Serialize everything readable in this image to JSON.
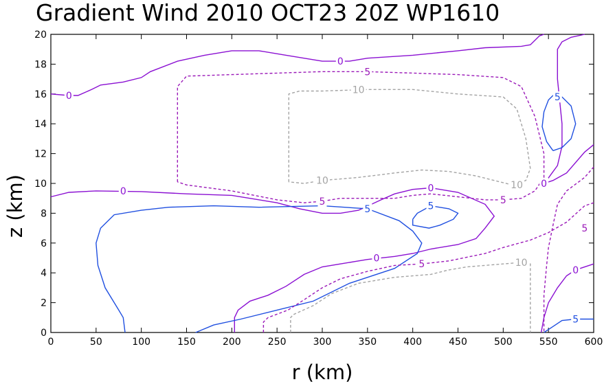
{
  "chart_data": {
    "type": "contour",
    "title": "Gradient Wind 2010 OCT23 20Z   WP1610",
    "xlabel": "r (km)",
    "ylabel": "z (km)",
    "xlim": [
      0,
      600
    ],
    "ylim": [
      0,
      20
    ],
    "x_ticks": [
      "0",
      "50",
      "100",
      "150",
      "200",
      "250",
      "300",
      "350",
      "400",
      "450",
      "500",
      "550",
      "600"
    ],
    "y_ticks": [
      "0",
      "2",
      "4",
      "6",
      "8",
      "10",
      "12",
      "14",
      "16",
      "18",
      "20"
    ],
    "grid": false,
    "colors": {
      "zero": "#8a0fd2",
      "positive": "#1f4fe0",
      "negative": "#9a18b8",
      "strong_negative": "#a3a3a3"
    },
    "contours": [
      {
        "level": "0",
        "kind": "zero",
        "dashed": false,
        "points": [
          [
            0,
            16
          ],
          [
            20,
            15.9
          ],
          [
            30,
            15.9
          ],
          [
            45,
            16.3
          ],
          [
            55,
            16.6
          ],
          [
            80,
            16.8
          ],
          [
            100,
            17.1
          ],
          [
            110,
            17.5
          ],
          [
            140,
            18.2
          ],
          [
            170,
            18.6
          ],
          [
            200,
            18.9
          ],
          [
            230,
            18.9
          ],
          [
            260,
            18.6
          ],
          [
            300,
            18.2
          ],
          [
            330,
            18.2
          ],
          [
            350,
            18.4
          ],
          [
            400,
            18.6
          ],
          [
            450,
            18.9
          ],
          [
            480,
            19.1
          ],
          [
            520,
            19.2
          ],
          [
            530,
            19.3
          ],
          [
            540,
            19.9
          ],
          [
            545,
            20
          ]
        ],
        "labels": [
          {
            "text": "0",
            "x": 20,
            "y": 15.9
          },
          {
            "text": "0",
            "x": 320,
            "y": 18.2
          }
        ]
      },
      {
        "level": "0",
        "kind": "zero",
        "dashed": false,
        "points": [
          [
            0,
            9.1
          ],
          [
            20,
            9.4
          ],
          [
            50,
            9.5
          ],
          [
            100,
            9.45
          ],
          [
            150,
            9.3
          ],
          [
            200,
            9.2
          ],
          [
            250,
            8.7
          ],
          [
            275,
            8.3
          ],
          [
            300,
            8.0
          ],
          [
            320,
            8.0
          ],
          [
            340,
            8.2
          ],
          [
            365,
            8.9
          ],
          [
            380,
            9.3
          ],
          [
            400,
            9.6
          ],
          [
            420,
            9.7
          ],
          [
            450,
            9.4
          ],
          [
            480,
            8.6
          ],
          [
            490,
            7.8
          ],
          [
            480,
            7.0
          ],
          [
            470,
            6.3
          ],
          [
            450,
            5.9
          ],
          [
            420,
            5.6
          ],
          [
            400,
            5.3
          ],
          [
            380,
            5.1
          ],
          [
            350,
            4.9
          ],
          [
            320,
            4.6
          ],
          [
            300,
            4.4
          ],
          [
            280,
            3.9
          ],
          [
            260,
            3.1
          ],
          [
            240,
            2.5
          ],
          [
            220,
            2.1
          ],
          [
            207,
            1.5
          ],
          [
            203,
            1.0
          ],
          [
            203,
            0
          ]
        ],
        "labels": [
          {
            "text": "0",
            "x": 80,
            "y": 9.5
          },
          {
            "text": "0",
            "x": 420,
            "y": 9.7
          },
          {
            "text": "0",
            "x": 360,
            "y": 5.0
          }
        ]
      },
      {
        "level": "0",
        "kind": "zero",
        "dashed": false,
        "points": [
          [
            590,
            20
          ],
          [
            575,
            19.8
          ],
          [
            565,
            19.5
          ],
          [
            560,
            19.0
          ],
          [
            560,
            17.0
          ],
          [
            565,
            14.0
          ],
          [
            565,
            12.5
          ],
          [
            560,
            11.2
          ],
          [
            554,
            10.7
          ],
          [
            548,
            10.2
          ],
          [
            545,
            10.0
          ],
          [
            555,
            10.2
          ],
          [
            570,
            10.7
          ],
          [
            590,
            12.1
          ],
          [
            600,
            12.6
          ]
        ],
        "labels": [
          {
            "text": "0",
            "x": 545,
            "y": 10.0
          }
        ]
      },
      {
        "level": "0",
        "kind": "zero",
        "dashed": false,
        "points": [
          [
            542,
            0
          ],
          [
            545,
            1
          ],
          [
            550,
            2
          ],
          [
            560,
            3
          ],
          [
            570,
            3.8
          ],
          [
            580,
            4.2
          ],
          [
            600,
            4.6
          ]
        ],
        "labels": [
          {
            "text": "0",
            "x": 580,
            "y": 4.2
          }
        ]
      },
      {
        "level": "5",
        "kind": "positive",
        "dashed": false,
        "points": [
          [
            82,
            0
          ],
          [
            80,
            1
          ],
          [
            75,
            1.5
          ],
          [
            60,
            3
          ],
          [
            52,
            4.5
          ],
          [
            50,
            6
          ],
          [
            55,
            7
          ],
          [
            70,
            7.9
          ],
          [
            100,
            8.2
          ],
          [
            130,
            8.4
          ],
          [
            180,
            8.5
          ],
          [
            230,
            8.4
          ],
          [
            300,
            8.5
          ],
          [
            350,
            8.3
          ],
          [
            385,
            7.5
          ],
          [
            400,
            6.8
          ],
          [
            410,
            6.0
          ],
          [
            405,
            5.3
          ],
          [
            380,
            4.3
          ],
          [
            330,
            3.3
          ],
          [
            290,
            2.1
          ],
          [
            250,
            1.5
          ],
          [
            210,
            0.9
          ],
          [
            180,
            0.5
          ],
          [
            160,
            0
          ]
        ],
        "labels": [
          {
            "text": "5",
            "x": 350,
            "y": 8.3
          }
        ]
      },
      {
        "level": "5",
        "kind": "positive",
        "dashed": false,
        "points": [
          [
            400,
            7.6
          ],
          [
            400,
            7.2
          ],
          [
            418,
            7.0
          ],
          [
            430,
            7.2
          ],
          [
            445,
            7.6
          ],
          [
            450,
            8.0
          ],
          [
            440,
            8.3
          ],
          [
            420,
            8.5
          ],
          [
            405,
            8.0
          ],
          [
            400,
            7.6
          ]
        ],
        "labels": [
          {
            "text": "5",
            "x": 420,
            "y": 8.5
          }
        ]
      },
      {
        "level": "5",
        "kind": "positive",
        "dashed": false,
        "points": [
          [
            555,
            12.2
          ],
          [
            548,
            12.8
          ],
          [
            543,
            13.8
          ],
          [
            545,
            14.8
          ],
          [
            550,
            15.6
          ],
          [
            555,
            15.9
          ],
          [
            565,
            15.8
          ],
          [
            575,
            15.2
          ],
          [
            580,
            14.0
          ],
          [
            575,
            13.0
          ],
          [
            565,
            12.4
          ],
          [
            555,
            12.2
          ]
        ],
        "labels": [
          {
            "text": "5",
            "x": 560,
            "y": 15.8
          }
        ]
      },
      {
        "level": "5",
        "kind": "positive",
        "dashed": false,
        "points": [
          [
            545,
            0
          ],
          [
            555,
            0.4
          ],
          [
            565,
            0.8
          ],
          [
            580,
            0.9
          ],
          [
            600,
            0.9
          ]
        ],
        "labels": [
          {
            "text": "5",
            "x": 580,
            "y": 0.9
          }
        ]
      },
      {
        "level": "-5",
        "kind": "negative",
        "dashed": true,
        "points": [
          [
            140,
            10.1
          ],
          [
            140,
            14.0
          ],
          [
            140,
            16.5
          ],
          [
            150,
            17.2
          ],
          [
            200,
            17.3
          ],
          [
            250,
            17.4
          ],
          [
            300,
            17.5
          ],
          [
            350,
            17.5
          ],
          [
            400,
            17.4
          ],
          [
            450,
            17.3
          ],
          [
            500,
            17.1
          ],
          [
            520,
            16.5
          ],
          [
            535,
            14.5
          ],
          [
            545,
            12.0
          ],
          [
            545,
            10.4
          ],
          [
            535,
            9.5
          ],
          [
            520,
            9.0
          ],
          [
            500,
            8.9
          ],
          [
            480,
            8.9
          ],
          [
            450,
            9.1
          ],
          [
            420,
            9.3
          ],
          [
            400,
            9.2
          ],
          [
            380,
            9.0
          ],
          [
            350,
            9.0
          ],
          [
            320,
            9.0
          ],
          [
            300,
            8.8
          ],
          [
            280,
            8.7
          ],
          [
            250,
            8.9
          ],
          [
            200,
            9.5
          ],
          [
            150,
            9.9
          ],
          [
            140,
            10.1
          ]
        ],
        "labels": [
          {
            "text": "5",
            "x": 350,
            "y": 17.5
          },
          {
            "text": "5",
            "x": 300,
            "y": 8.8
          },
          {
            "text": "5",
            "x": 500,
            "y": 8.9
          }
        ]
      },
      {
        "level": "-5",
        "kind": "negative",
        "dashed": true,
        "points": [
          [
            235,
            0
          ],
          [
            235,
            0.7
          ],
          [
            240,
            1.0
          ],
          [
            262,
            1.5
          ],
          [
            280,
            2.2
          ],
          [
            300,
            3.0
          ],
          [
            320,
            3.6
          ],
          [
            350,
            4.1
          ],
          [
            380,
            4.5
          ],
          [
            410,
            4.6
          ],
          [
            440,
            4.8
          ],
          [
            480,
            5.3
          ],
          [
            500,
            5.7
          ],
          [
            530,
            6.2
          ],
          [
            550,
            6.7
          ],
          [
            570,
            7.4
          ],
          [
            590,
            8.5
          ],
          [
            600,
            8.7
          ]
        ],
        "labels": [
          {
            "text": "5",
            "x": 410,
            "y": 4.6
          }
        ]
      },
      {
        "level": "-5",
        "kind": "negative",
        "dashed": true,
        "points": [
          [
            600,
            11.1
          ],
          [
            590,
            10.4
          ],
          [
            570,
            9.5
          ],
          [
            560,
            8.6
          ],
          [
            555,
            7.2
          ],
          [
            550,
            5.7
          ],
          [
            548,
            4.5
          ],
          [
            545,
            2.5
          ],
          [
            545,
            0
          ]
        ],
        "labels": [
          {
            "text": "5",
            "x": 590,
            "y": 7.0
          }
        ]
      },
      {
        "level": "-10",
        "kind": "strong_negative",
        "dashed": true,
        "points": [
          [
            263,
            10.1
          ],
          [
            263,
            12.0
          ],
          [
            263,
            16.0
          ],
          [
            275,
            16.2
          ],
          [
            300,
            16.2
          ],
          [
            350,
            16.3
          ],
          [
            400,
            16.3
          ],
          [
            450,
            16.0
          ],
          [
            500,
            15.8
          ],
          [
            515,
            15.0
          ],
          [
            525,
            13.0
          ],
          [
            530,
            11.0
          ],
          [
            525,
            10.2
          ],
          [
            510,
            9.9
          ],
          [
            490,
            10.2
          ],
          [
            470,
            10.5
          ],
          [
            440,
            10.8
          ],
          [
            410,
            10.9
          ],
          [
            380,
            10.7
          ],
          [
            340,
            10.4
          ],
          [
            300,
            10.2
          ],
          [
            280,
            10.0
          ],
          [
            263,
            10.1
          ]
        ],
        "labels": [
          {
            "text": "10",
            "x": 340,
            "y": 16.3
          },
          {
            "text": "10",
            "x": 300,
            "y": 10.2
          },
          {
            "text": "10",
            "x": 515,
            "y": 9.9
          }
        ]
      },
      {
        "level": "-10",
        "kind": "strong_negative",
        "dashed": true,
        "points": [
          [
            265,
            0
          ],
          [
            265,
            1.0
          ],
          [
            268,
            1.2
          ],
          [
            290,
            1.8
          ],
          [
            310,
            2.6
          ],
          [
            340,
            3.3
          ],
          [
            380,
            3.7
          ],
          [
            420,
            3.9
          ],
          [
            440,
            4.2
          ],
          [
            460,
            4.4
          ],
          [
            500,
            4.6
          ],
          [
            520,
            4.7
          ],
          [
            530,
            4.6
          ],
          [
            530,
            3.5
          ],
          [
            530,
            0
          ]
        ],
        "labels": [
          {
            "text": "10",
            "x": 520,
            "y": 4.7
          }
        ]
      }
    ]
  }
}
